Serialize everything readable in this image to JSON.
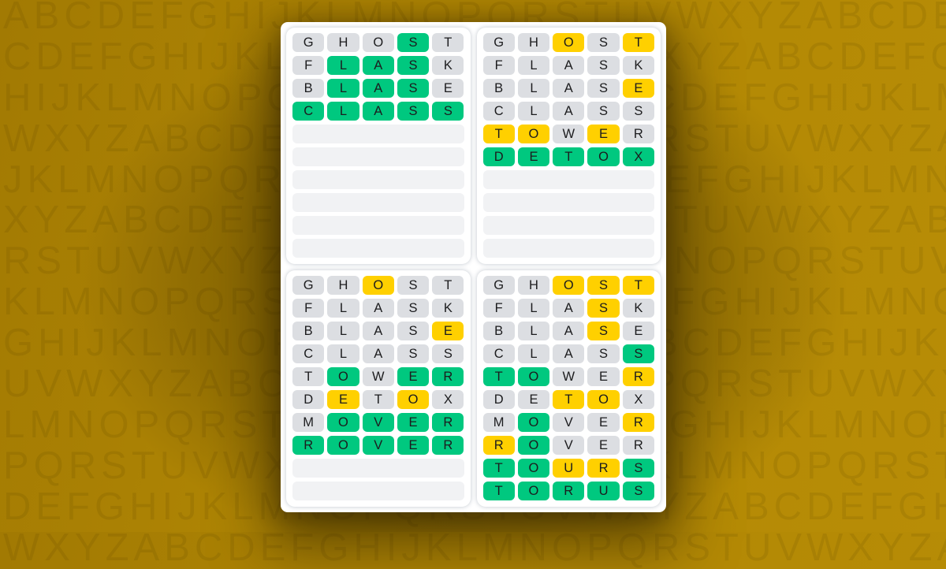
{
  "background": {
    "base_color": "#b08604",
    "letter_color": "rgba(20,14,0,0.08)",
    "rows": [
      "ABCDEFGHIJKLMNOPQRSTUVWXYZABCDEFGH",
      "CDEFGHIJKLMNOPQRSTUVWXYZABCDEFGHIJ",
      "HIJKLMNOPQRSTUVWXYZABCDEFGHIJKLMNO",
      "WXYZABCDEFGHIJKLMNOPQRSTUVWXYZABCD",
      "JKLMNOPQRSTUVWXYZABCDEFGHIJKLMNOPQ",
      "XYZABCDEFGHIJKLMNOPQRSTUVWXYZABCDE",
      "RSTUVWXYZABCDEFGHIJKLMNOPQRSTUVWXY",
      "KLMNOPQRSTUVWXYZABCDEFGHIJKLMNOPQR",
      "GHIJKLMNOPQRSTUVWXYZABCDEFGHIJKLMN",
      "UVWXYZABCDEFGHIJKLMNOPQRSTUVWXYZAB",
      "LMNOPQRSTUVWXYZABCDEFGHIJKLMNOPQRS",
      "PQRSTUVWXYZABCDEFGHIJKLMNOPQRSTUVW",
      "DEFGHIJKLMNOPQRSTUVWXYZABCDEFGHIJK",
      "WXYZABCDEFGHIJKLMNOPQRSTUVWXYZABCD"
    ]
  },
  "colors": {
    "green": "#00c87f",
    "yellow": "#ffd000",
    "gray": "#dcdee2",
    "empty": "#f1f2f4",
    "tile_text": "#1c1c1e"
  },
  "board": {
    "game": "quordle-daily-sequence",
    "rows_per_quadrant": 10,
    "quadrants": [
      {
        "name": "top-left",
        "solution": "CLASS",
        "guesses": [
          {
            "word": "GHOST",
            "colors": "xxxgx"
          },
          {
            "word": "FLASK",
            "colors": "xgggx"
          },
          {
            "word": "BLASE",
            "colors": "xgggx"
          },
          {
            "word": "CLASS",
            "colors": "ggggg"
          }
        ],
        "empty_rows": 6
      },
      {
        "name": "top-right",
        "solution": "DETOX",
        "guesses": [
          {
            "word": "GHOST",
            "colors": "xxyxy"
          },
          {
            "word": "FLASK",
            "colors": "xxxxx"
          },
          {
            "word": "BLASE",
            "colors": "xxxxy"
          },
          {
            "word": "CLASS",
            "colors": "xxxxx"
          },
          {
            "word": "TOWER",
            "colors": "yyxyx"
          },
          {
            "word": "DETOX",
            "colors": "ggggg"
          }
        ],
        "empty_rows": 4
      },
      {
        "name": "bottom-left",
        "solution": "ROVER",
        "guesses": [
          {
            "word": "GHOST",
            "colors": "xxyxx"
          },
          {
            "word": "FLASK",
            "colors": "xxxxx"
          },
          {
            "word": "BLASE",
            "colors": "xxxxy"
          },
          {
            "word": "CLASS",
            "colors": "xxxxx"
          },
          {
            "word": "TOWER",
            "colors": "xgxgg"
          },
          {
            "word": "DETOX",
            "colors": "xyxyx"
          },
          {
            "word": "MOVER",
            "colors": "xgggg"
          },
          {
            "word": "ROVER",
            "colors": "ggggg"
          }
        ],
        "empty_rows": 2
      },
      {
        "name": "bottom-right",
        "solution": "TORUS",
        "guesses": [
          {
            "word": "GHOST",
            "colors": "xxyyy"
          },
          {
            "word": "FLASK",
            "colors": "xxxyx"
          },
          {
            "word": "BLASE",
            "colors": "xxxyx"
          },
          {
            "word": "CLASS",
            "colors": "xxxxg"
          },
          {
            "word": "TOWER",
            "colors": "ggxxy"
          },
          {
            "word": "DETOX",
            "colors": "xxyyx"
          },
          {
            "word": "MOVER",
            "colors": "xgxxy"
          },
          {
            "word": "ROVER",
            "colors": "ygxxx"
          },
          {
            "word": "TOURS",
            "colors": "ggyyg"
          },
          {
            "word": "TORUS",
            "colors": "ggggg"
          }
        ],
        "empty_rows": 0
      }
    ]
  }
}
